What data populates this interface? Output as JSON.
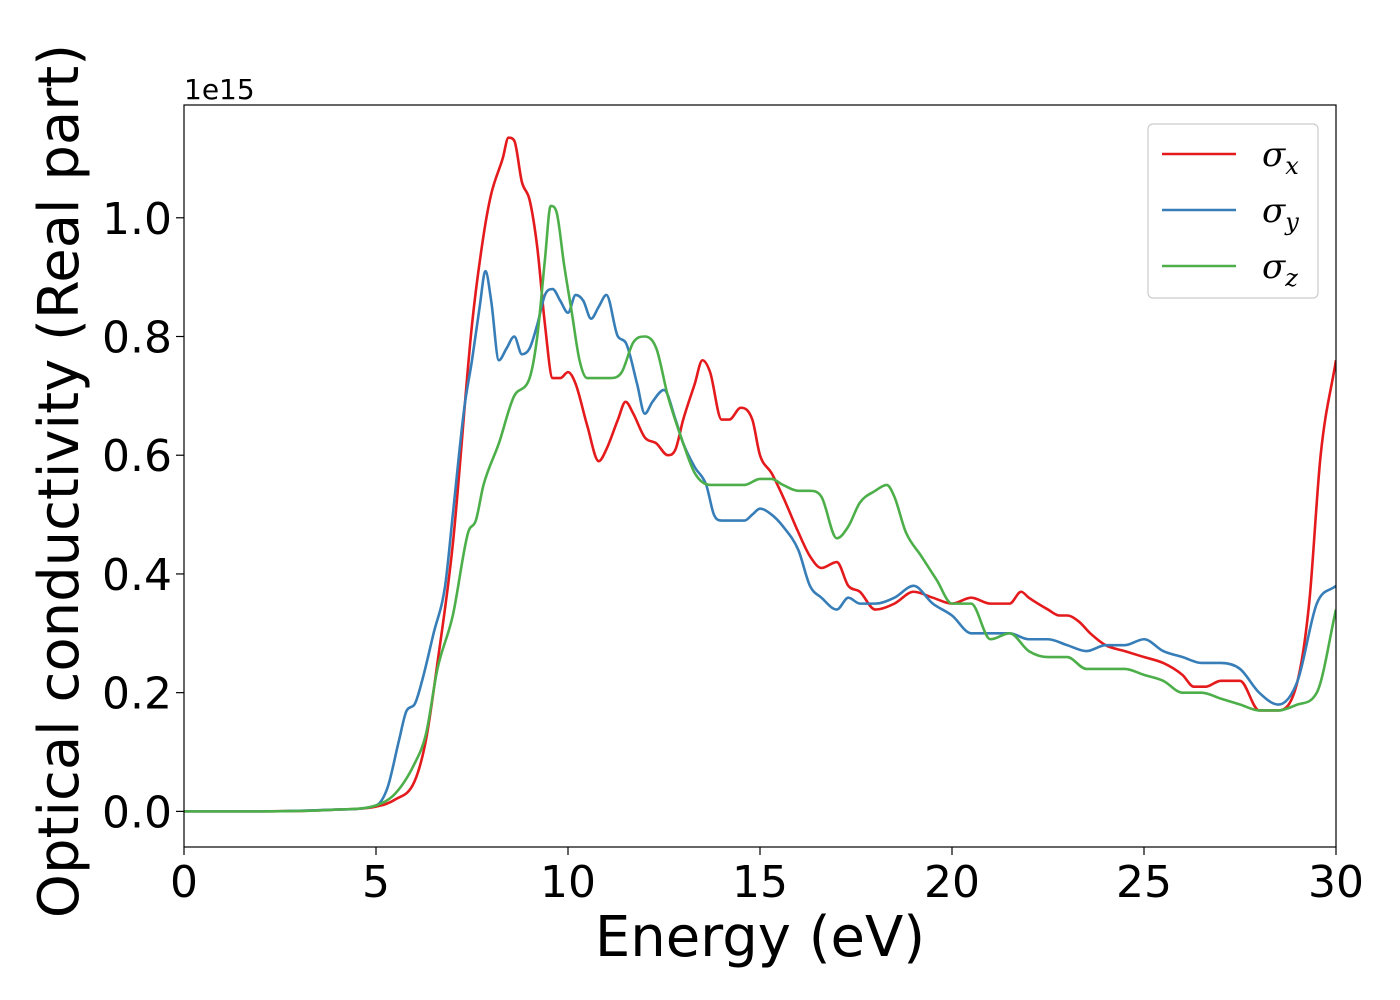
{
  "chart_data": {
    "type": "line",
    "xlabel": "Energy (eV)",
    "ylabel": "Optical conductivity (Real part)",
    "y_offset_label": "1e15",
    "xlim": [
      0,
      30
    ],
    "ylim": [
      -0.06,
      1.19
    ],
    "xticks": [
      0,
      5,
      10,
      15,
      20,
      25,
      30
    ],
    "xtick_labels": [
      "0",
      "5",
      "10",
      "15",
      "20",
      "25",
      "30"
    ],
    "yticks": [
      0.0,
      0.2,
      0.4,
      0.6,
      0.8,
      1.0
    ],
    "ytick_labels": [
      "0.0",
      "0.2",
      "0.4",
      "0.6",
      "0.8",
      "1.0"
    ],
    "grid": false,
    "legend_position": "top-right",
    "series": [
      {
        "name": "σx",
        "name_base": "σ",
        "name_sub": "x",
        "color": "#e41a1c",
        "x": [
          0,
          2,
          4,
          5,
          5.5,
          6,
          6.3,
          6.6,
          7,
          7.5,
          7.8,
          8,
          8.3,
          8.45,
          8.6,
          8.8,
          9,
          9.2,
          9.4,
          9.6,
          9.8,
          10,
          10.2,
          10.5,
          10.8,
          11,
          11.3,
          11.5,
          11.7,
          12,
          12.3,
          12.6,
          12.8,
          13,
          13.3,
          13.5,
          13.7,
          14,
          14.2,
          14.5,
          14.8,
          15,
          15.3,
          15.6,
          16,
          16.3,
          16.6,
          17,
          17.3,
          17.6,
          18,
          18.5,
          19,
          19.5,
          20,
          20.5,
          21,
          21.5,
          21.8,
          22,
          22.5,
          22.8,
          23,
          23.3,
          23.6,
          24,
          24.5,
          25,
          25.5,
          26,
          26.3,
          26.6,
          27,
          27.5,
          28,
          28.5,
          29,
          29.3,
          29.6,
          30
        ],
        "y": [
          0,
          0,
          0.003,
          0.008,
          0.02,
          0.05,
          0.12,
          0.25,
          0.45,
          0.82,
          0.97,
          1.04,
          1.1,
          1.135,
          1.13,
          1.06,
          1.03,
          0.95,
          0.82,
          0.73,
          0.73,
          0.74,
          0.72,
          0.65,
          0.59,
          0.61,
          0.66,
          0.69,
          0.67,
          0.63,
          0.62,
          0.6,
          0.61,
          0.66,
          0.72,
          0.76,
          0.74,
          0.66,
          0.66,
          0.68,
          0.66,
          0.6,
          0.57,
          0.53,
          0.47,
          0.43,
          0.41,
          0.42,
          0.38,
          0.37,
          0.34,
          0.35,
          0.37,
          0.36,
          0.35,
          0.36,
          0.35,
          0.35,
          0.37,
          0.36,
          0.34,
          0.33,
          0.33,
          0.32,
          0.3,
          0.28,
          0.27,
          0.26,
          0.25,
          0.23,
          0.21,
          0.21,
          0.22,
          0.22,
          0.17,
          0.17,
          0.22,
          0.35,
          0.6,
          0.76
        ]
      },
      {
        "name": "σy",
        "name_base": "σ",
        "name_sub": "y",
        "color": "#377eb8",
        "x": [
          0,
          2,
          4,
          5,
          5.3,
          5.6,
          5.8,
          6,
          6.2,
          6.5,
          6.8,
          7,
          7.3,
          7.5,
          7.7,
          7.85,
          8,
          8.2,
          8.4,
          8.6,
          8.8,
          9,
          9.2,
          9.4,
          9.6,
          9.8,
          10,
          10.2,
          10.4,
          10.6,
          10.8,
          11,
          11.3,
          11.5,
          11.8,
          12,
          12.2,
          12.5,
          12.8,
          13,
          13.3,
          13.6,
          13.8,
          14,
          14.3,
          14.6,
          14.8,
          15,
          15.3,
          15.6,
          16,
          16.3,
          16.6,
          17,
          17.3,
          17.6,
          18,
          18.5,
          19,
          19.5,
          20,
          20.5,
          21,
          21.5,
          22,
          22.5,
          23,
          23.5,
          24,
          24.5,
          25,
          25.5,
          26,
          26.5,
          27,
          27.5,
          28,
          28.5,
          29,
          29.5,
          30
        ],
        "y": [
          0,
          0,
          0.003,
          0.01,
          0.04,
          0.12,
          0.17,
          0.18,
          0.22,
          0.3,
          0.38,
          0.5,
          0.68,
          0.76,
          0.85,
          0.91,
          0.86,
          0.76,
          0.78,
          0.8,
          0.77,
          0.78,
          0.82,
          0.87,
          0.88,
          0.86,
          0.84,
          0.87,
          0.86,
          0.83,
          0.85,
          0.87,
          0.8,
          0.79,
          0.72,
          0.67,
          0.69,
          0.71,
          0.66,
          0.62,
          0.58,
          0.55,
          0.5,
          0.49,
          0.49,
          0.49,
          0.5,
          0.51,
          0.5,
          0.48,
          0.44,
          0.38,
          0.36,
          0.34,
          0.36,
          0.35,
          0.35,
          0.36,
          0.38,
          0.35,
          0.33,
          0.3,
          0.3,
          0.3,
          0.29,
          0.29,
          0.28,
          0.27,
          0.28,
          0.28,
          0.29,
          0.27,
          0.26,
          0.25,
          0.25,
          0.24,
          0.2,
          0.18,
          0.22,
          0.35,
          0.38
        ]
      },
      {
        "name": "σz",
        "name_base": "σ",
        "name_sub": "z",
        "color": "#4daf4a",
        "x": [
          0,
          2,
          4,
          5,
          5.5,
          6,
          6.3,
          6.6,
          7,
          7.4,
          7.6,
          7.8,
          8.2,
          8.6,
          9,
          9.2,
          9.4,
          9.55,
          9.7,
          9.9,
          10.1,
          10.3,
          10.5,
          10.8,
          11.1,
          11.4,
          11.7,
          12,
          12.3,
          12.6,
          13,
          13.3,
          13.7,
          14,
          14.3,
          14.6,
          15,
          15.3,
          15.6,
          16,
          16.3,
          16.6,
          17,
          17.3,
          17.6,
          18,
          18.3,
          18.5,
          18.8,
          19.2,
          19.6,
          20,
          20.5,
          21,
          21.5,
          22,
          22.5,
          23,
          23.5,
          24,
          24.5,
          25,
          25.5,
          26,
          26.5,
          27,
          27.5,
          28,
          28.5,
          29,
          29.5,
          30
        ],
        "y": [
          0,
          0,
          0.003,
          0.01,
          0.03,
          0.08,
          0.13,
          0.24,
          0.33,
          0.47,
          0.49,
          0.55,
          0.62,
          0.7,
          0.73,
          0.8,
          0.93,
          1.02,
          1.01,
          0.92,
          0.84,
          0.76,
          0.73,
          0.73,
          0.73,
          0.74,
          0.79,
          0.8,
          0.78,
          0.7,
          0.62,
          0.57,
          0.55,
          0.55,
          0.55,
          0.55,
          0.56,
          0.56,
          0.55,
          0.54,
          0.54,
          0.53,
          0.46,
          0.48,
          0.52,
          0.54,
          0.55,
          0.53,
          0.47,
          0.43,
          0.39,
          0.35,
          0.35,
          0.29,
          0.3,
          0.27,
          0.26,
          0.26,
          0.24,
          0.24,
          0.24,
          0.23,
          0.22,
          0.2,
          0.2,
          0.19,
          0.18,
          0.17,
          0.17,
          0.18,
          0.2,
          0.34
        ]
      }
    ]
  }
}
